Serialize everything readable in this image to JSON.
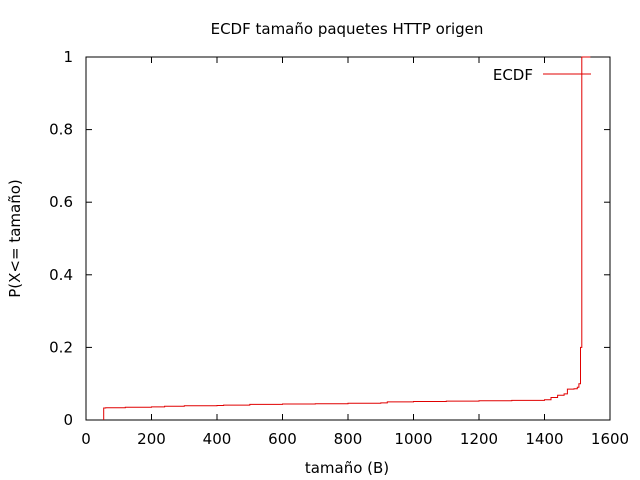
{
  "chart_data": {
    "type": "line",
    "title": "ECDF tamaño paquetes HTTP origen",
    "xlabel": "tamaño (B)",
    "ylabel": "P(X<= tamaño)",
    "xlim": [
      0,
      1600
    ],
    "ylim": [
      0,
      1
    ],
    "xticks": [
      0,
      200,
      400,
      600,
      800,
      1000,
      1200,
      1400,
      1600
    ],
    "yticks": [
      0,
      0.2,
      0.4,
      0.6,
      0.8,
      1
    ],
    "ytick_labels": [
      "0",
      "0.2",
      "0.4",
      "0.6",
      "0.8",
      "1"
    ],
    "grid": false,
    "legend": {
      "position": "top-right",
      "entries": [
        "ECDF"
      ]
    },
    "series": [
      {
        "name": "ECDF",
        "color": "#e00000",
        "step": true,
        "x": [
          54,
          60,
          66,
          120,
          200,
          240,
          300,
          400,
          420,
          500,
          600,
          700,
          800,
          900,
          920,
          1000,
          1100,
          1200,
          1300,
          1400,
          1420,
          1440,
          1460,
          1470,
          1490,
          1500,
          1505,
          1510,
          1514,
          1540
        ],
        "y": [
          0.033,
          0.034,
          0.034,
          0.035,
          0.036,
          0.038,
          0.039,
          0.04,
          0.041,
          0.043,
          0.044,
          0.045,
          0.046,
          0.047,
          0.05,
          0.051,
          0.052,
          0.053,
          0.054,
          0.056,
          0.062,
          0.068,
          0.072,
          0.085,
          0.086,
          0.09,
          0.1,
          0.2,
          1.0,
          1.0
        ]
      }
    ]
  }
}
